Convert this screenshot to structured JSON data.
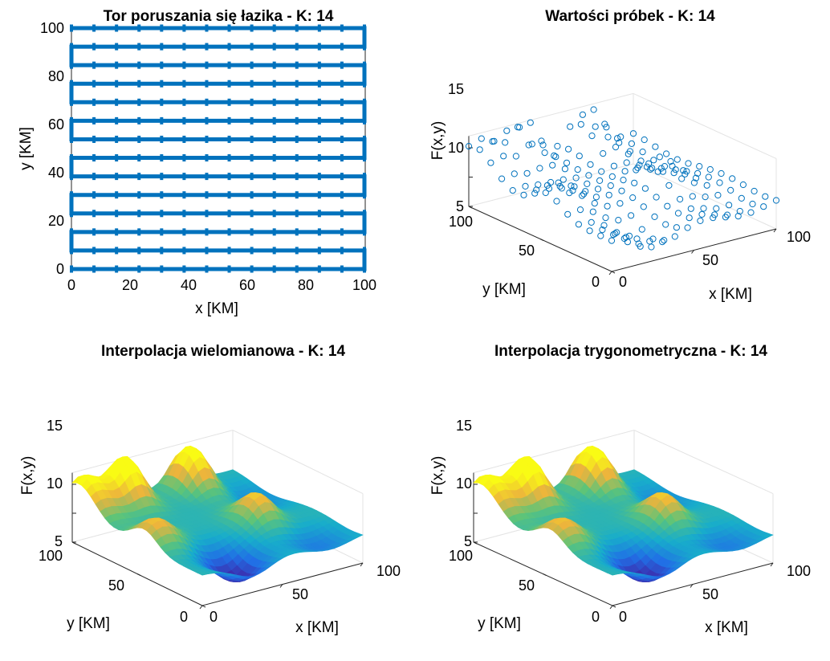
{
  "chart_data": [
    {
      "type": "line",
      "title": "Tor poruszania się łazika - K: 14",
      "xlabel": "x [KM]",
      "ylabel": "y [KM]",
      "xlim": [
        0,
        100
      ],
      "ylim": [
        0,
        100
      ],
      "xticks": [
        "0",
        "20",
        "40",
        "60",
        "80",
        "100"
      ],
      "yticks": [
        "0",
        "20",
        "40",
        "60",
        "80",
        "100"
      ],
      "path_rows": 14,
      "samples_per_row": 14,
      "line_color": "#0072BD"
    },
    {
      "type": "scatter",
      "title": "Wartości próbek - K: 14",
      "xlabel": "x [KM]",
      "ylabel": "y [KM]",
      "zlabel": "F(x,y)",
      "xticks": [
        "0",
        "50",
        "100"
      ],
      "yticks": [
        "0",
        "50",
        "100"
      ],
      "zticks": [
        "5",
        "10",
        "15"
      ],
      "zlim": [
        5,
        17
      ],
      "marker": "circle",
      "color": "#0072BD"
    },
    {
      "type": "surface",
      "title": "Interpolacja wielomianowa - K: 14",
      "xlabel": "x [KM]",
      "ylabel": "y [KM]",
      "zlabel": "F(x,y)",
      "xticks": [
        "0",
        "50",
        "100"
      ],
      "yticks": [
        "0",
        "50",
        "100"
      ],
      "zticks": [
        "5",
        "10",
        "15"
      ],
      "zlim": [
        5,
        17
      ],
      "colormap": "parula"
    },
    {
      "type": "surface",
      "title": "Interpolacja trygonometryczna - K: 14",
      "xlabel": "x [KM]",
      "ylabel": "y [KM]",
      "zlabel": "F(x,y)",
      "xticks": [
        "0",
        "50",
        "100"
      ],
      "yticks": [
        "0",
        "50",
        "100"
      ],
      "zticks": [
        "5",
        "10",
        "15"
      ],
      "zlim": [
        5,
        17
      ],
      "colormap": "parula"
    }
  ]
}
